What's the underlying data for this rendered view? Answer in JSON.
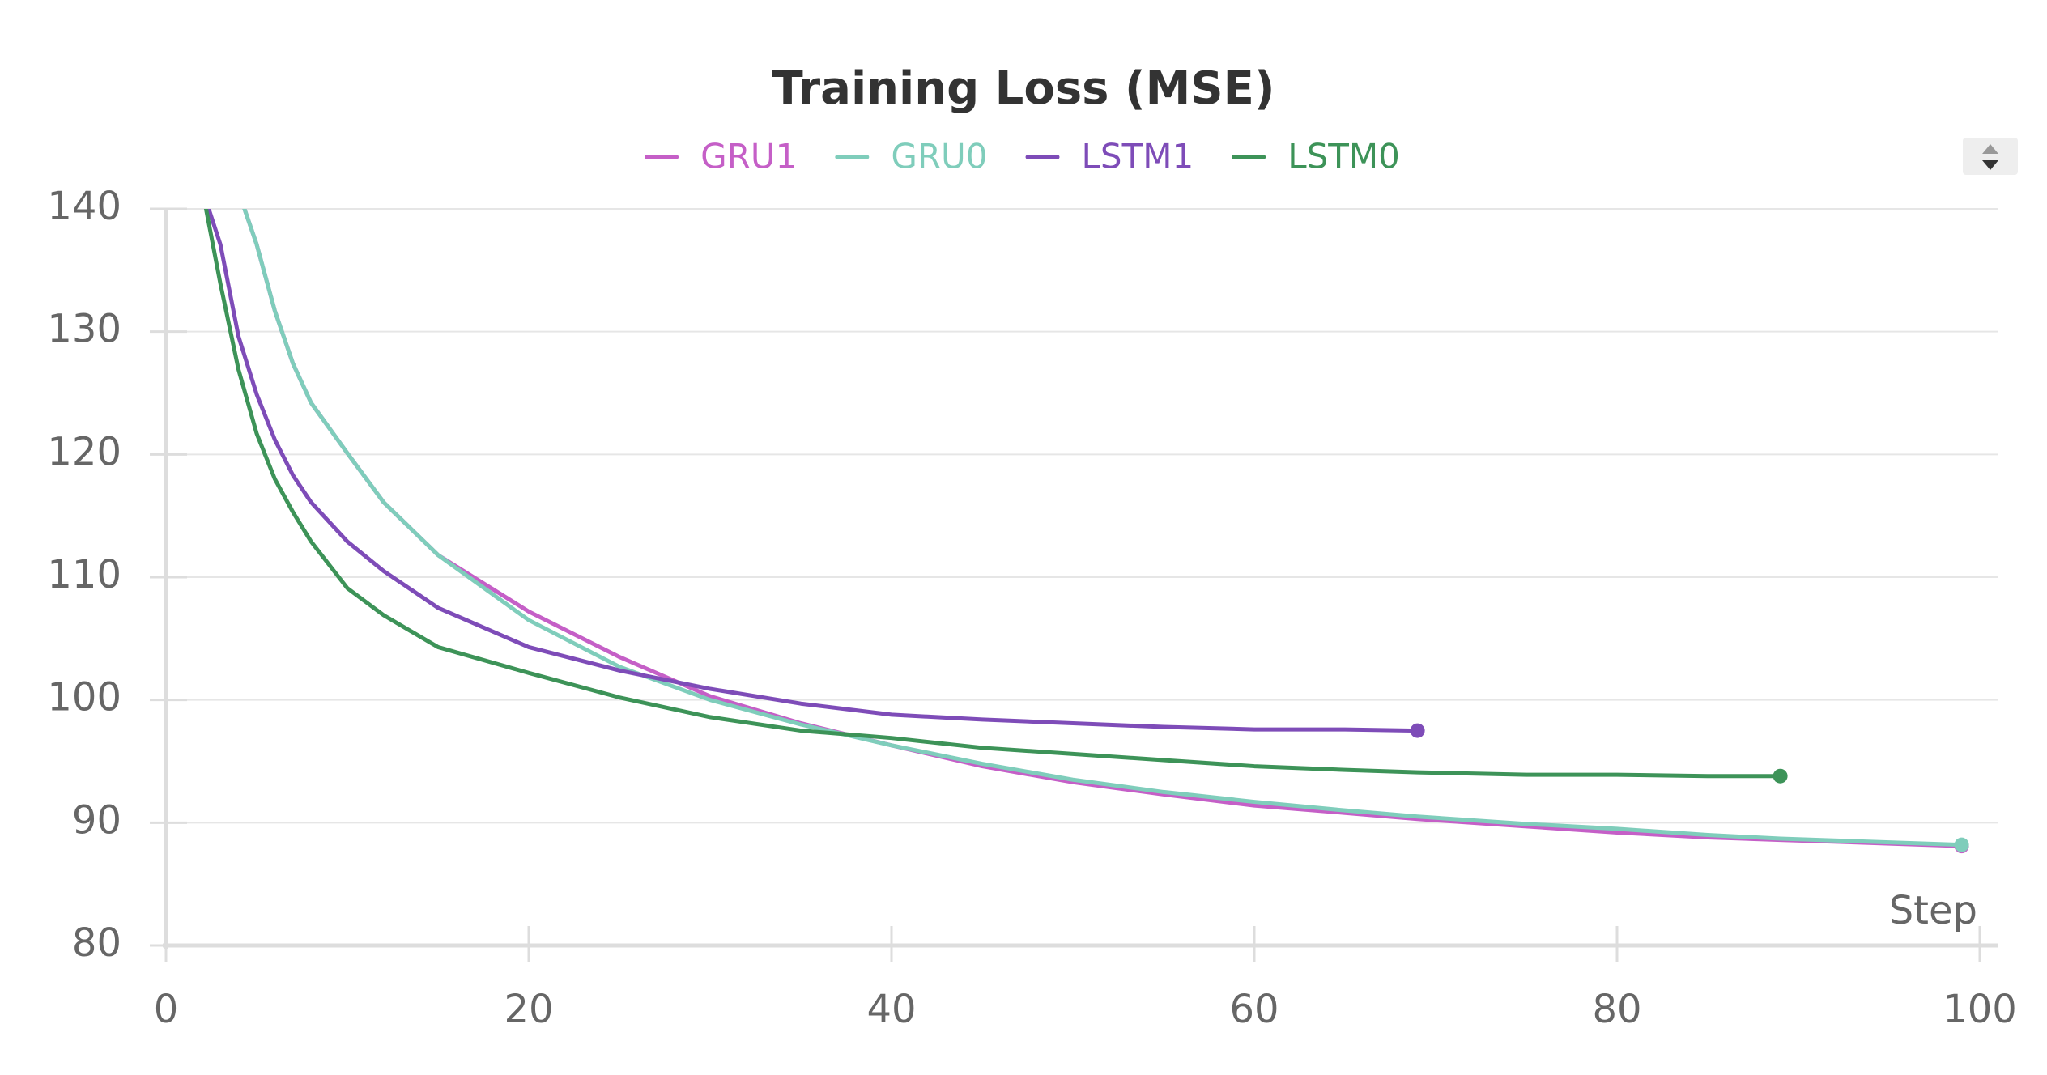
{
  "chart_data": {
    "type": "line",
    "title": "Training Loss (MSE)",
    "x_label": "Step",
    "x": [
      2,
      3,
      4,
      5,
      6,
      7,
      8,
      10,
      12,
      15,
      20,
      25,
      30,
      35,
      40,
      45,
      50,
      55,
      60,
      65,
      69,
      75,
      80,
      85,
      89,
      95,
      99
    ],
    "series": [
      {
        "name": "GRU1",
        "color": "#c55fc7",
        "values": [
          null,
          null,
          141.4,
          137.1,
          131.7,
          127.4,
          124.2,
          120.1,
          116.1,
          111.8,
          107.2,
          103.5,
          100.3,
          98.1,
          96.3,
          94.6,
          93.3,
          92.3,
          91.4,
          90.8,
          90.3,
          89.7,
          89.2,
          88.8,
          88.6,
          88.3,
          88.1
        ]
      },
      {
        "name": "GRU0",
        "color": "#7fcdbb",
        "values": [
          null,
          null,
          141.4,
          137.1,
          131.7,
          127.4,
          124.2,
          120.1,
          116.1,
          111.8,
          106.5,
          102.7,
          100.0,
          98.0,
          96.3,
          94.8,
          93.5,
          92.5,
          91.7,
          91.0,
          90.5,
          89.9,
          89.5,
          89.0,
          88.7,
          88.4,
          88.2
        ]
      },
      {
        "name": "LSTM1",
        "color": "#7e4cb8",
        "values": [
          141.6,
          137.1,
          129.6,
          124.9,
          121.2,
          118.3,
          116.1,
          112.9,
          110.5,
          107.5,
          104.3,
          102.4,
          100.9,
          99.7,
          98.8,
          98.4,
          98.1,
          97.8,
          97.6,
          97.6,
          97.5,
          null,
          null,
          null,
          null,
          null,
          null
        ]
      },
      {
        "name": "LSTM0",
        "color": "#3d9358",
        "values": [
          141.6,
          133.9,
          126.9,
          121.7,
          118.0,
          115.3,
          112.9,
          109.1,
          106.9,
          104.3,
          102.2,
          100.2,
          98.6,
          97.5,
          96.9,
          96.1,
          95.6,
          95.1,
          94.6,
          94.3,
          94.1,
          93.9,
          93.9,
          93.8,
          93.8,
          null,
          null
        ]
      }
    ],
    "xlim": [
      0,
      100
    ],
    "xticks": [
      0,
      20,
      40,
      60,
      80,
      100
    ],
    "ylim": [
      80,
      140
    ],
    "yticks": [
      80,
      90,
      100,
      110,
      120,
      130,
      140
    ],
    "grid": true
  }
}
